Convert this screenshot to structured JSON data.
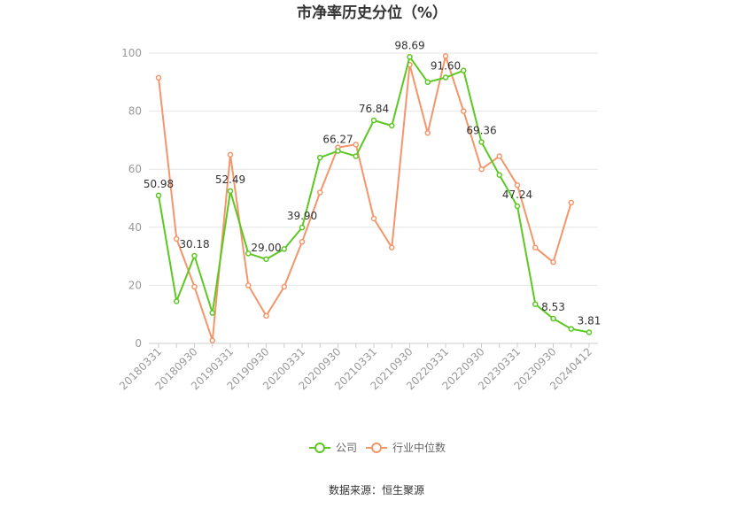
{
  "chart_data": {
    "type": "line",
    "title": "市净率历史分位（%）",
    "source": "数据来源：恒生聚源",
    "ylim": [
      0,
      100
    ],
    "yticks": [
      0,
      20,
      40,
      60,
      80,
      100
    ],
    "x_tick_labels": [
      "20180331",
      "20180930",
      "20190331",
      "20190930",
      "20200331",
      "20200930",
      "20210331",
      "20210930",
      "20220331",
      "20220930",
      "20230331",
      "20230930",
      "20240412"
    ],
    "legend_position": "bottom-center",
    "grid": true,
    "n_points": 25,
    "series": [
      {
        "name": "公司",
        "color": "#5cc822",
        "values": [
          50.98,
          14.5,
          30.18,
          10.5,
          52.49,
          31.0,
          29.0,
          32.5,
          39.9,
          64.0,
          66.27,
          64.5,
          76.84,
          75.0,
          98.69,
          90.0,
          91.6,
          94.0,
          69.36,
          58.0,
          47.24,
          13.5,
          8.53,
          5.0,
          3.81
        ],
        "labels": {
          "0": "50.98",
          "2": "30.18",
          "4": "52.49",
          "6": "29.00",
          "8": "39.90",
          "10": "66.27",
          "12": "76.84",
          "14": "98.69",
          "16": "91.60",
          "18": "69.36",
          "20": "47.24",
          "22": "8.53",
          "24": "3.81"
        }
      },
      {
        "name": "行业中位数",
        "color": "#f4956a",
        "values": [
          91.5,
          36.0,
          19.5,
          1.0,
          65.0,
          20.0,
          9.5,
          19.5,
          35.0,
          52.0,
          67.5,
          68.5,
          43.0,
          33.0,
          96.0,
          72.5,
          99.0,
          80.0,
          60.0,
          64.5,
          54.5,
          33.0,
          28.0,
          48.5,
          null
        ]
      }
    ]
  }
}
